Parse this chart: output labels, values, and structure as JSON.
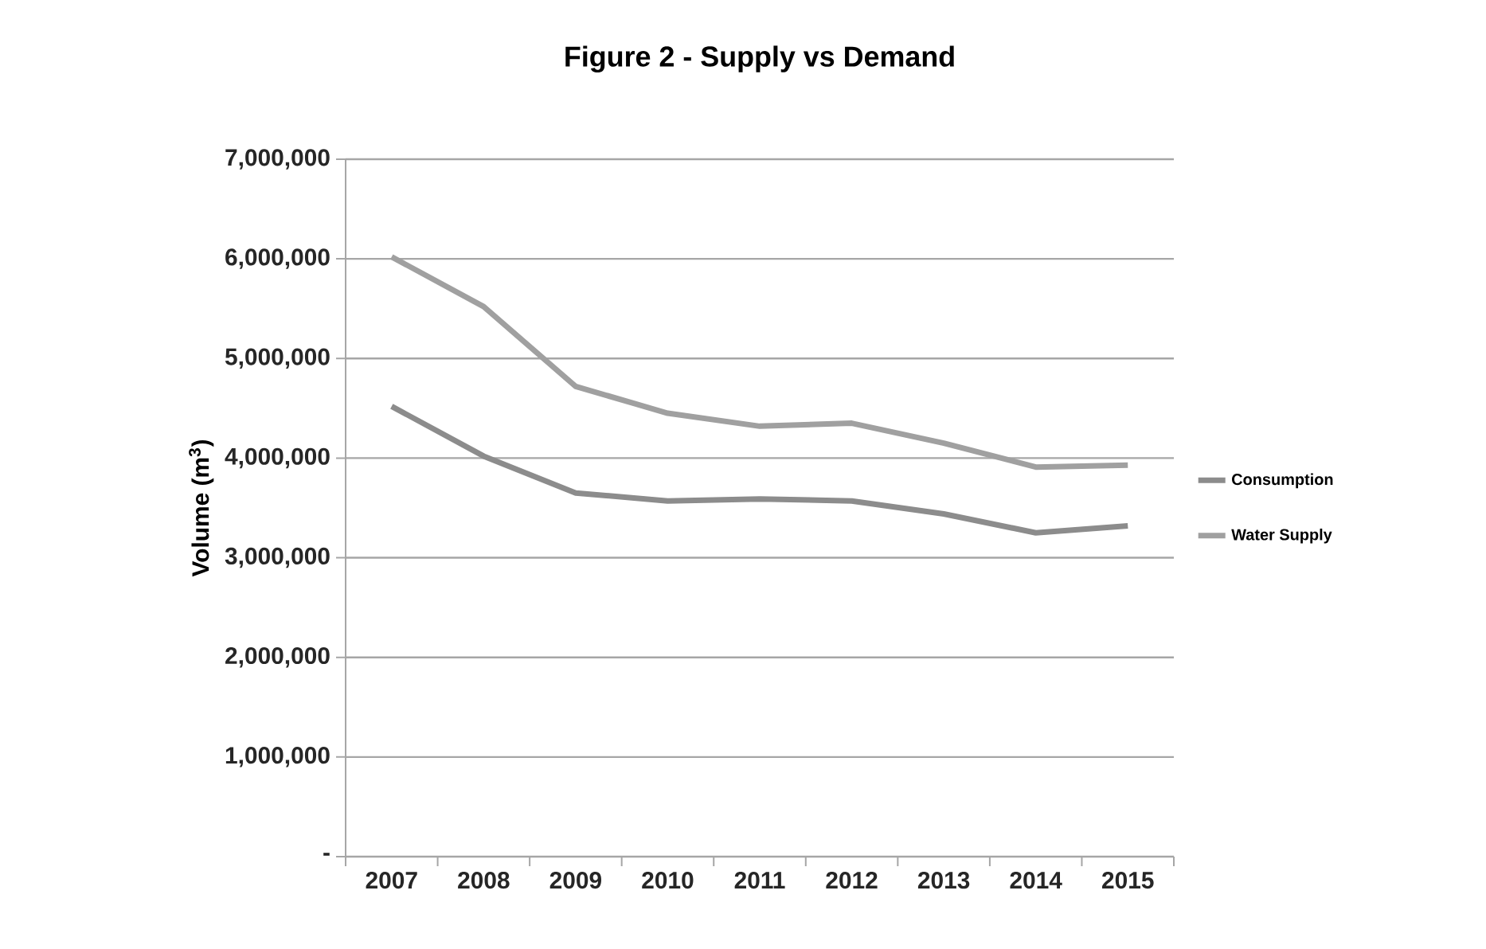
{
  "chart_data": {
    "type": "line",
    "title": "Figure 2 - Supply vs Demand",
    "ylabel": "Volume (m$^{3}$)",
    "categories": [
      "2007",
      "2008",
      "2009",
      "2010",
      "2011",
      "2012",
      "2013",
      "2014",
      "2015"
    ],
    "series": [
      {
        "name": "Consumption",
        "color": "#8c8c8c",
        "values": [
          4520000,
          4020000,
          3650000,
          3570000,
          3590000,
          3570000,
          3440000,
          3250000,
          3320000
        ]
      },
      {
        "name": "Water Supply",
        "color": "#a0a0a0",
        "values": [
          6020000,
          5520000,
          4720000,
          4450000,
          4320000,
          4350000,
          4150000,
          3910000,
          3930000
        ]
      }
    ],
    "ylim": [
      0,
      7000000
    ],
    "yticks": [
      {
        "value": 0,
        "label": "-"
      },
      {
        "value": 1000000,
        "label": "1,000,000"
      },
      {
        "value": 2000000,
        "label": "2,000,000"
      },
      {
        "value": 3000000,
        "label": "3,000,000"
      },
      {
        "value": 4000000,
        "label": "4,000,000"
      },
      {
        "value": 5000000,
        "label": "5,000,000"
      },
      {
        "value": 6000000,
        "label": "6,000,000"
      },
      {
        "value": 7000000,
        "label": "7,000,000"
      }
    ],
    "grid": "y",
    "legend": "right",
    "marker": "none",
    "line_style": "solid"
  }
}
